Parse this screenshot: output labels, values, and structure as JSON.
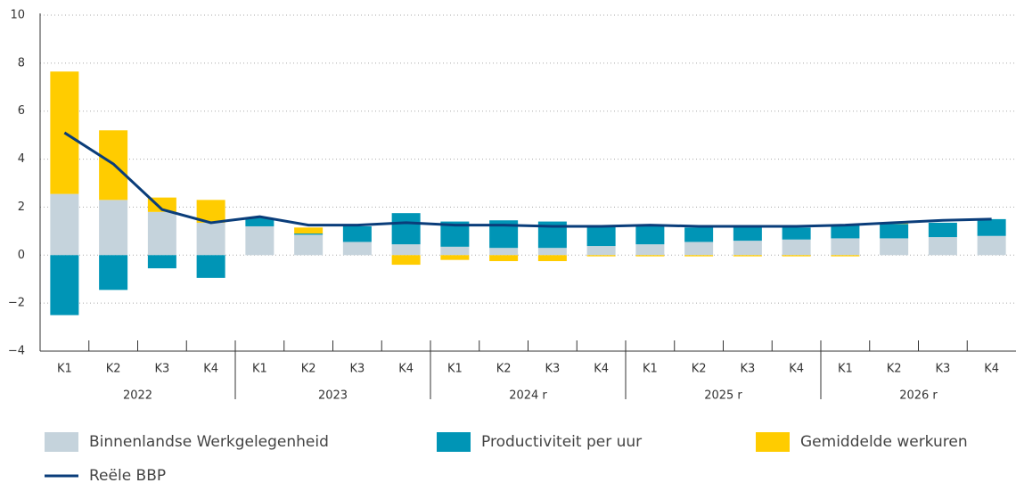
{
  "chart_data": {
    "type": "bar",
    "stacked": true,
    "categories": [
      "K1",
      "K2",
      "K3",
      "K4",
      "K1",
      "K2",
      "K3",
      "K4",
      "K1",
      "K2",
      "K3",
      "K4",
      "K1",
      "K2",
      "K3",
      "K4",
      "K1",
      "K2",
      "K3",
      "K4"
    ],
    "groups": [
      "2022",
      "2023",
      "2024 r",
      "2025 r",
      "2026 r"
    ],
    "ylim": [
      -4,
      10
    ],
    "yticks": [
      {
        "value": -4,
        "label": "−4"
      },
      {
        "value": -2,
        "label": "−2"
      },
      0,
      2,
      4,
      6,
      8,
      10
    ],
    "grid": true,
    "series": [
      {
        "name": "Binnenlandse Werkgelegenheid",
        "color": "#c5d3dc",
        "type": "bar",
        "values": [
          2.55,
          2.3,
          1.8,
          1.35,
          1.2,
          0.85,
          0.55,
          0.45,
          0.35,
          0.3,
          0.3,
          0.38,
          0.45,
          0.55,
          0.6,
          0.65,
          0.7,
          0.7,
          0.75,
          0.8
        ]
      },
      {
        "name": "Productiviteit per uur",
        "color": "#0095b6",
        "type": "bar",
        "values": [
          -2.5,
          -1.45,
          -0.55,
          -0.95,
          0.35,
          0.05,
          0.65,
          1.3,
          1.05,
          1.15,
          1.1,
          0.8,
          0.75,
          0.6,
          0.55,
          0.5,
          0.55,
          0.6,
          0.6,
          0.7
        ]
      },
      {
        "name": "Gemiddelde werkuren",
        "color": "#ffcc00",
        "type": "bar",
        "values": [
          5.1,
          2.9,
          0.6,
          0.95,
          0,
          0.25,
          0,
          -0.4,
          -0.2,
          -0.25,
          -0.25,
          -0.05,
          -0.05,
          -0.05,
          -0.05,
          -0.05,
          -0.05,
          0.03,
          0,
          0
        ]
      },
      {
        "name": "Reële BBP",
        "color": "#0a3d7a",
        "type": "line",
        "values": [
          5.1,
          3.8,
          1.9,
          1.35,
          1.6,
          1.25,
          1.25,
          1.35,
          1.25,
          1.25,
          1.2,
          1.2,
          1.25,
          1.2,
          1.2,
          1.2,
          1.25,
          1.35,
          1.45,
          1.5
        ]
      }
    ]
  }
}
